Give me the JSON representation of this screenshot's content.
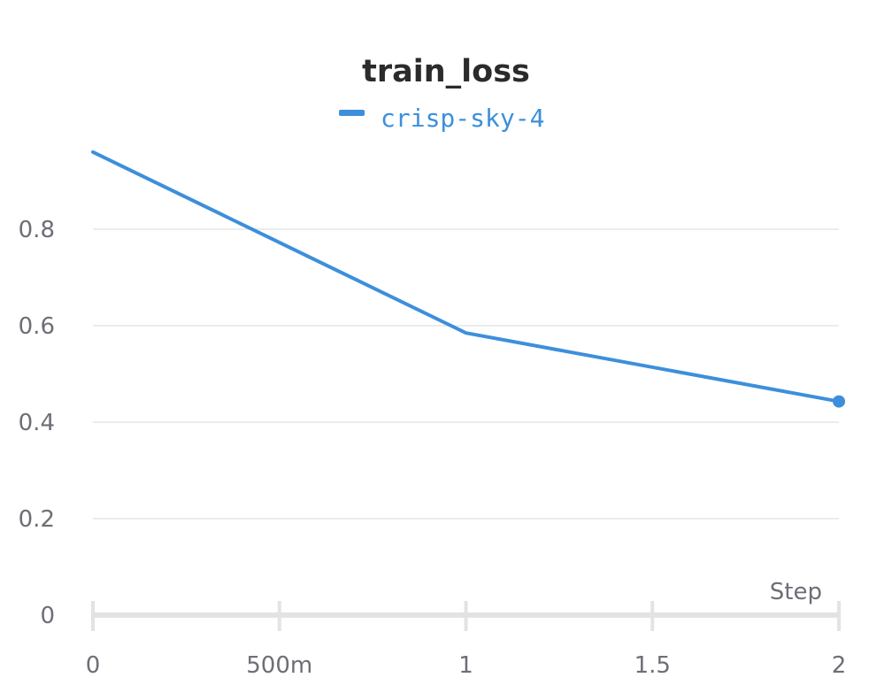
{
  "chart_data": {
    "type": "line",
    "title": "train_loss",
    "xlabel": "Step",
    "ylabel": "",
    "x_ticks": [
      0,
      0.5,
      1,
      1.5,
      2
    ],
    "x_tick_labels": [
      "0",
      "500m",
      "1",
      "1.5",
      "2"
    ],
    "y_ticks": [
      0,
      0.2,
      0.4,
      0.6,
      0.8
    ],
    "y_tick_labels": [
      "0",
      "0.2",
      "0.4",
      "0.6",
      "0.8"
    ],
    "xlim": [
      0,
      2
    ],
    "ylim": [
      0,
      1.0
    ],
    "grid": true,
    "legend_position": "top-center",
    "series": [
      {
        "name": "crisp-sky-4",
        "color": "#3d8fdb",
        "x": [
          0,
          1,
          2
        ],
        "y": [
          0.96,
          0.585,
          0.443
        ]
      }
    ]
  }
}
